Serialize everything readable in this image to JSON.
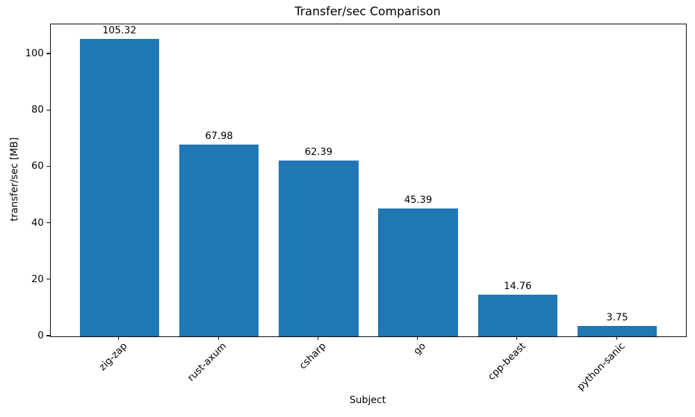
{
  "chart_data": {
    "type": "bar",
    "title": "Transfer/sec Comparison",
    "xlabel": "Subject",
    "ylabel": "transfer/sec [MB]",
    "categories": [
      "zig-zap",
      "rust-axum",
      "csharp",
      "go",
      "cpp-beast",
      "python-sanic"
    ],
    "values": [
      105.32,
      67.98,
      62.39,
      45.39,
      14.76,
      3.75
    ],
    "value_labels": [
      "105.32",
      "67.98",
      "62.39",
      "45.39",
      "14.76",
      "3.75"
    ],
    "yticks": [
      0,
      20,
      40,
      60,
      80,
      100
    ],
    "ylim": [
      0,
      110.6
    ],
    "bar_color": "#1f77b4",
    "grid": false,
    "legend_position": "none",
    "x_tick_rotation_deg": 45,
    "background_color": "#ffffff",
    "axis_color": "#000000"
  }
}
